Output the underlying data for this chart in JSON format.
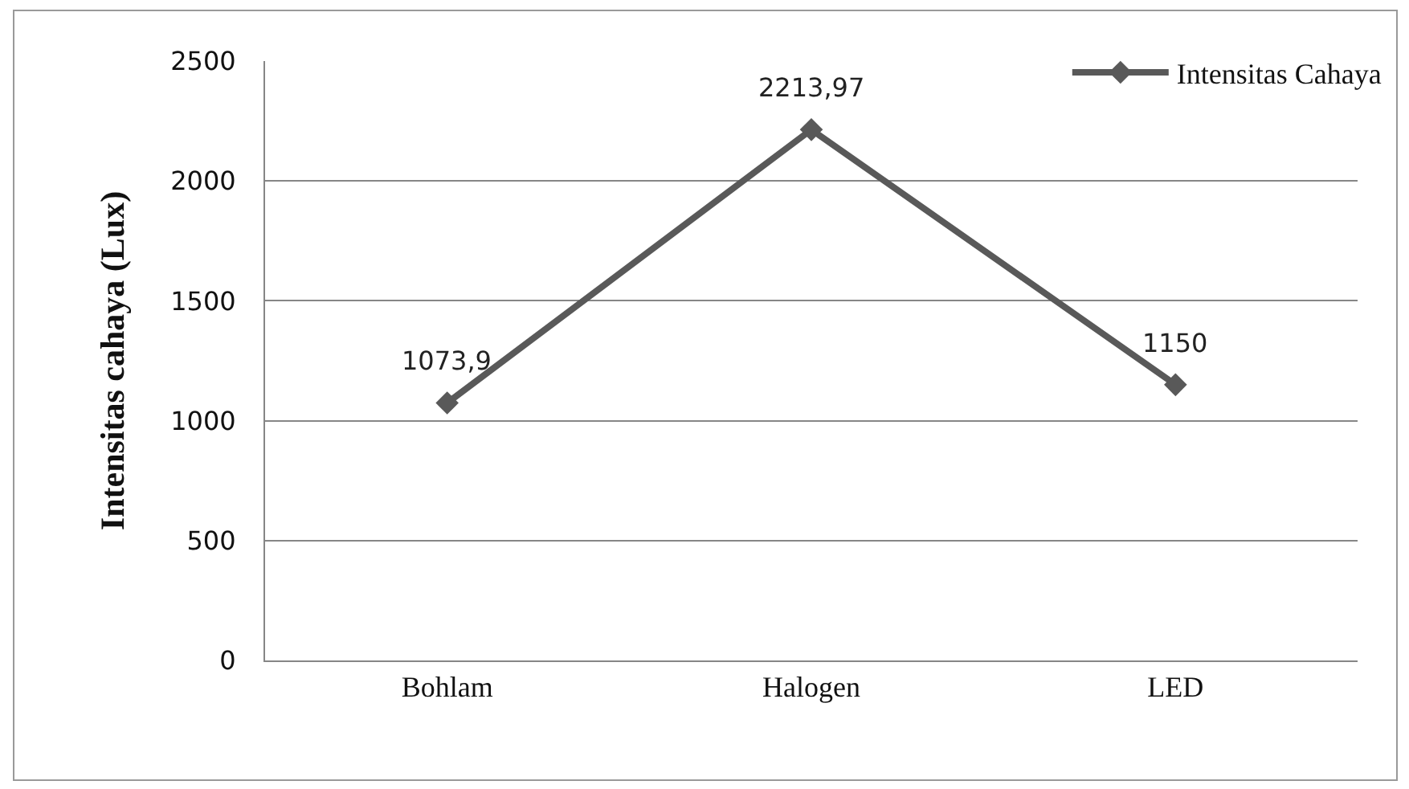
{
  "chart_data": {
    "type": "line",
    "ylabel": "Intensitas cahaya (Lux)",
    "categories": [
      "Bohlam",
      "Halogen",
      "LED"
    ],
    "series": [
      {
        "name": "Intensitas Cahaya",
        "color": "#595959",
        "values": [
          1073.9,
          2213.97,
          1150
        ],
        "value_labels": [
          "1073,9",
          "2213,97",
          "1150"
        ]
      }
    ],
    "ylim": [
      0,
      2500
    ],
    "yticks": [
      0,
      500,
      1000,
      1500,
      2000,
      2500
    ],
    "grid": "y",
    "legend": "top right",
    "marker": "diamond",
    "line_style": "solid"
  }
}
